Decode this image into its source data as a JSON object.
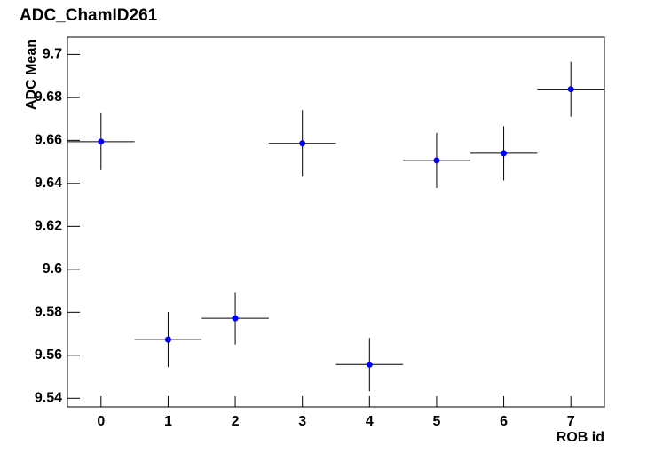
{
  "chart_data": {
    "type": "scatter",
    "title": "ADC_ChamID261",
    "x_label": "ROB id",
    "y_label": "ADC Mean",
    "x": [
      0,
      1,
      2,
      3,
      4,
      5,
      6,
      7
    ],
    "values": [
      9.6594,
      9.5673,
      9.5772,
      9.6586,
      9.5557,
      9.6507,
      9.654,
      9.6838
    ],
    "errors": [
      0.0132,
      0.0128,
      0.0122,
      0.0155,
      0.0124,
      0.0128,
      0.0126,
      0.0128
    ],
    "x_errors": [
      0.5,
      0.5,
      0.5,
      0.5,
      0.5,
      0.5,
      0.5,
      0.5
    ],
    "color": "#0000ff",
    "xlim": [
      -0.5,
      7.5
    ],
    "xticks": [
      0,
      1,
      2,
      3,
      4,
      5,
      6,
      7
    ],
    "ylim": [
      9.536,
      9.708
    ],
    "yticks": [
      9.54,
      9.56,
      9.58,
      9.6,
      9.62,
      9.64,
      9.66,
      9.68,
      9.7
    ],
    "grid": false
  }
}
